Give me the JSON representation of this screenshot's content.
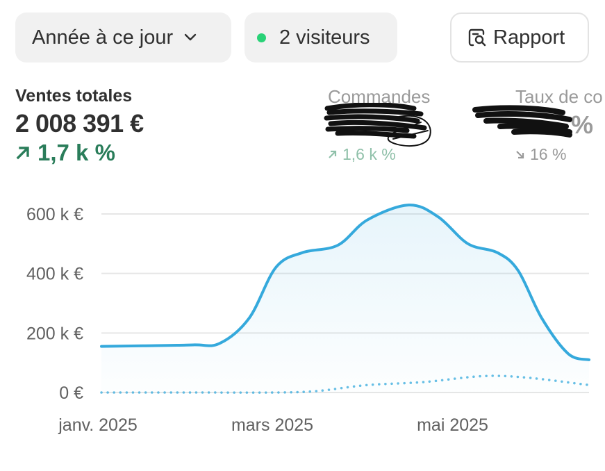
{
  "filters": {
    "date_range": "Année à ce jour",
    "visitors": "2 visiteurs",
    "report_label": "Rapport"
  },
  "metrics": [
    {
      "label": "Ventes totales",
      "value": "2 008 391 €",
      "change": "1,7 k %",
      "direction": "up"
    },
    {
      "label": "Commandes",
      "change": "1,6 k %",
      "direction": "up"
    },
    {
      "label": "Taux de co",
      "value_suffix": "%",
      "change": "16 %",
      "direction": "down"
    }
  ],
  "colors": {
    "accent_line": "#35a9dc",
    "positive": "#2a7d5a",
    "online_dot": "#29d277"
  },
  "chart_data": {
    "type": "line",
    "y_ticks": [
      "0 €",
      "200 k €",
      "400 k €",
      "600 k €"
    ],
    "x_ticks": [
      "janv. 2025",
      "mars 2025",
      "mai 2025"
    ],
    "ylim": [
      0,
      600000
    ],
    "grid": true,
    "series": [
      {
        "style": "solid",
        "area": true,
        "points": [
          {
            "x": "2025-01-01",
            "y": 155000
          },
          {
            "x": "2025-01-15",
            "y": 157000
          },
          {
            "x": "2025-02-01",
            "y": 160000
          },
          {
            "x": "2025-02-10",
            "y": 165000
          },
          {
            "x": "2025-02-20",
            "y": 250000
          },
          {
            "x": "2025-03-01",
            "y": 420000
          },
          {
            "x": "2025-03-10",
            "y": 470000
          },
          {
            "x": "2025-03-22",
            "y": 495000
          },
          {
            "x": "2025-04-01",
            "y": 580000
          },
          {
            "x": "2025-04-15",
            "y": 630000
          },
          {
            "x": "2025-04-25",
            "y": 590000
          },
          {
            "x": "2025-05-05",
            "y": 500000
          },
          {
            "x": "2025-05-15",
            "y": 470000
          },
          {
            "x": "2025-05-22",
            "y": 410000
          },
          {
            "x": "2025-05-30",
            "y": 250000
          },
          {
            "x": "2025-06-08",
            "y": 130000
          },
          {
            "x": "2025-06-15",
            "y": 110000
          }
        ]
      },
      {
        "style": "dotted",
        "area": false,
        "points": [
          {
            "x": "2025-01-01",
            "y": 0
          },
          {
            "x": "2025-02-01",
            "y": 0
          },
          {
            "x": "2025-03-01",
            "y": 0
          },
          {
            "x": "2025-03-15",
            "y": 5000
          },
          {
            "x": "2025-04-01",
            "y": 25000
          },
          {
            "x": "2025-04-20",
            "y": 35000
          },
          {
            "x": "2025-05-10",
            "y": 55000
          },
          {
            "x": "2025-05-25",
            "y": 50000
          },
          {
            "x": "2025-06-15",
            "y": 25000
          }
        ]
      }
    ]
  }
}
